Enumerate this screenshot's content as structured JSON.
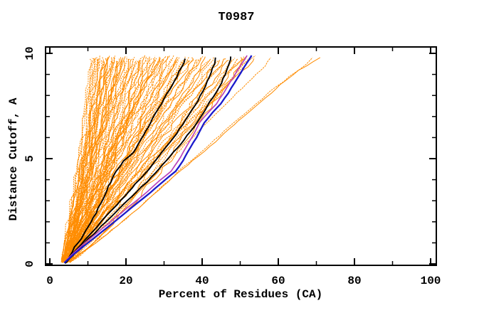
{
  "chart_data": {
    "type": "line",
    "title": "T0987",
    "xlabel": "Percent of Residues (CA)",
    "ylabel": "Distance Cutoff, A",
    "xlim": [
      0,
      100
    ],
    "ylim": [
      0,
      10
    ],
    "x_major_ticks": [
      0,
      20,
      40,
      60,
      80,
      100
    ],
    "x_minor_ticks": [
      10,
      30,
      50,
      70,
      90
    ],
    "y_major_ticks": [
      0,
      5,
      10
    ],
    "y_minor_ticks": [
      1,
      2,
      3,
      4,
      6,
      7,
      8,
      9
    ],
    "grid": false,
    "legend": null,
    "colors": {
      "models": "#FF8C00",
      "highlight": "#000000",
      "best": "#1A1ACC",
      "reference": "#BB44BB",
      "axis": "#000000",
      "background": "#FFFFFF"
    },
    "series": {
      "orange_model_top_percents": [
        10.5,
        11,
        11.4,
        11.8,
        12.1,
        12.5,
        12.8,
        13.2,
        13.5,
        13.9,
        14.2,
        14.6,
        15,
        15.3,
        15.7,
        16,
        16.4,
        16.8,
        17.1,
        17.5,
        17.9,
        18.2,
        18.6,
        19,
        19.4,
        19.8,
        20.2,
        20.6,
        21,
        21.4,
        21.8,
        22.2,
        22.7,
        23.1,
        23.5,
        24,
        24.4,
        24.9,
        25.3,
        25.8,
        26.2,
        26.7,
        27.1,
        27.6,
        28,
        28.5,
        29,
        29.5,
        30,
        30.5,
        31,
        31.5,
        32,
        32.5,
        33,
        33.5,
        34,
        34.5,
        35,
        35.5,
        36,
        36.6,
        37.2,
        37.8,
        38.4,
        39,
        39.6,
        40.2,
        40.8,
        41.5,
        42.2,
        43,
        43.8,
        44.6,
        45.4,
        46.2,
        47,
        47.8,
        48.6,
        49.4,
        50.2,
        51,
        51.8,
        52.4,
        53,
        53.6,
        54,
        28.8,
        23.8,
        19.2,
        16.2,
        13.7,
        12.3,
        33.8,
        44.2
      ],
      "orange_start_percent_range": [
        3.0,
        5.5
      ],
      "cutoff_range": [
        0.1,
        9.85
      ],
      "black_curves": [
        [
          [
            4.5,
            0.1
          ],
          [
            6.5,
            0.8
          ],
          [
            9,
            1.4
          ],
          [
            11.5,
            2.2
          ],
          [
            14,
            3.1
          ],
          [
            16,
            3.9
          ],
          [
            17.4,
            4.4
          ],
          [
            19.5,
            4.9
          ],
          [
            21.9,
            5.3
          ],
          [
            24.5,
            6.1
          ],
          [
            27,
            6.9
          ],
          [
            29.3,
            7.6
          ],
          [
            31.5,
            8.3
          ],
          [
            33.3,
            8.9
          ],
          [
            34.8,
            9.4
          ],
          [
            35.5,
            9.75
          ]
        ],
        [
          [
            4.2,
            0.05
          ],
          [
            7,
            0.7
          ],
          [
            10.5,
            1.4
          ],
          [
            14.5,
            2.2
          ],
          [
            18.5,
            3.0
          ],
          [
            22.5,
            3.8
          ],
          [
            26,
            4.5
          ],
          [
            29.5,
            5.3
          ],
          [
            32.5,
            6.0
          ],
          [
            35.5,
            6.8
          ],
          [
            38,
            7.5
          ],
          [
            40.2,
            8.2
          ],
          [
            42,
            8.9
          ],
          [
            43.2,
            9.5
          ],
          [
            43.5,
            9.8
          ]
        ],
        [
          [
            4,
            0.02
          ],
          [
            8,
            0.8
          ],
          [
            12.5,
            1.6
          ],
          [
            17,
            2.4
          ],
          [
            21.5,
            3.2
          ],
          [
            25.5,
            3.9
          ],
          [
            29.5,
            4.7
          ],
          [
            33.5,
            5.5
          ],
          [
            37,
            6.3
          ],
          [
            40,
            7.1
          ],
          [
            42.8,
            7.9
          ],
          [
            45,
            8.6
          ],
          [
            46.5,
            9.2
          ],
          [
            47.3,
            9.7
          ],
          [
            47.5,
            9.85
          ]
        ]
      ],
      "blue_curve": [
        [
          3.8,
          0.05
        ],
        [
          6.2,
          0.45
        ],
        [
          10,
          1.0
        ],
        [
          13.5,
          1.5
        ],
        [
          16.6,
          1.95
        ],
        [
          19.6,
          2.4
        ],
        [
          23,
          2.9
        ],
        [
          26.5,
          3.4
        ],
        [
          30,
          3.95
        ],
        [
          33,
          4.4
        ],
        [
          35,
          4.9
        ],
        [
          36.8,
          5.5
        ],
        [
          38.5,
          6.0
        ],
        [
          40.5,
          6.7
        ],
        [
          42.8,
          7.2
        ],
        [
          44.9,
          7.6
        ],
        [
          46.8,
          8.1
        ],
        [
          48.5,
          8.6
        ],
        [
          50.2,
          9.1
        ],
        [
          51.8,
          9.55
        ],
        [
          53,
          9.9
        ]
      ],
      "magenta_curve": [
        [
          3.8,
          0.05
        ],
        [
          5.8,
          0.45
        ],
        [
          9.2,
          1.0
        ],
        [
          12.6,
          1.5
        ],
        [
          15.6,
          1.95
        ],
        [
          18.6,
          2.4
        ],
        [
          22,
          2.9
        ],
        [
          25.4,
          3.4
        ],
        [
          28.8,
          3.95
        ],
        [
          31.8,
          4.4
        ],
        [
          33.8,
          4.9
        ],
        [
          35.6,
          5.5
        ],
        [
          37.3,
          6.0
        ],
        [
          39.3,
          6.7
        ],
        [
          41.6,
          7.2
        ],
        [
          43.7,
          7.6
        ],
        [
          45.6,
          8.1
        ],
        [
          47.3,
          8.6
        ],
        [
          49,
          9.1
        ],
        [
          50.6,
          9.55
        ],
        [
          51.8,
          9.9
        ]
      ],
      "orange_outlier_curves": [
        [
          [
            5,
            0.1
          ],
          [
            8,
            0.5
          ],
          [
            12,
            1.0
          ],
          [
            17,
            1.7
          ],
          [
            23,
            2.6
          ],
          [
            29,
            3.6
          ],
          [
            35,
            4.6
          ],
          [
            41,
            5.5
          ],
          [
            47,
            6.5
          ],
          [
            53,
            7.4
          ],
          [
            58,
            8.2
          ],
          [
            63,
            8.9
          ],
          [
            67.5,
            9.5
          ],
          [
            69,
            9.8
          ]
        ],
        [
          [
            5.5,
            0.1
          ],
          [
            9,
            0.6
          ],
          [
            13.5,
            1.2
          ],
          [
            19,
            2.0
          ],
          [
            25,
            2.9
          ],
          [
            31,
            3.9
          ],
          [
            37.5,
            4.9
          ],
          [
            43.5,
            5.8
          ],
          [
            49.5,
            6.8
          ],
          [
            55.5,
            7.7
          ],
          [
            60.5,
            8.5
          ],
          [
            65.5,
            9.2
          ],
          [
            71,
            9.8
          ]
        ],
        [
          [
            4.5,
            0.05
          ],
          [
            7.5,
            0.6
          ],
          [
            11.5,
            1.3
          ],
          [
            16.5,
            2.2
          ],
          [
            22,
            3.2
          ],
          [
            27.5,
            4.2
          ],
          [
            33,
            5.2
          ],
          [
            38.5,
            6.2
          ],
          [
            44,
            7.2
          ],
          [
            49,
            8.1
          ],
          [
            53,
            8.8
          ],
          [
            56.5,
            9.4
          ],
          [
            58,
            9.8
          ]
        ]
      ]
    }
  }
}
